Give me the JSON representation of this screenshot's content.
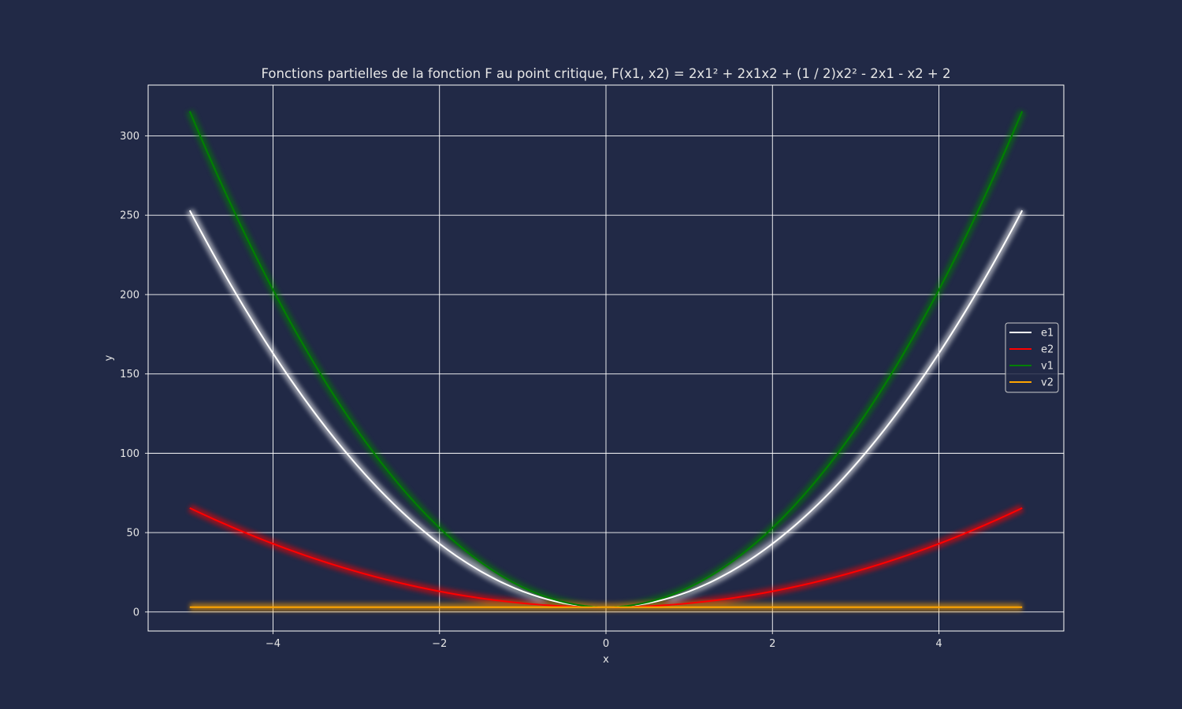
{
  "colors": {
    "background": "#212946",
    "text": "#e6e6e6",
    "grid": "#ffffff",
    "spine": "#ffffff"
  },
  "chart_data": {
    "type": "line",
    "title": "Fonctions partielles de la fonction F au point critique, F(x1, x2) = 2x1² + 2x1x2 + (1 / 2)x2² - 2x1 - x2 + 2",
    "xlabel": "x",
    "ylabel": "y",
    "xlim": [
      -5.5,
      5.5
    ],
    "ylim": [
      -12,
      332
    ],
    "xticks": [
      -4,
      -2,
      0,
      2,
      4
    ],
    "xtick_labels": [
      "−4",
      "−2",
      "0",
      "2",
      "4"
    ],
    "yticks": [
      0,
      50,
      100,
      150,
      200,
      250,
      300
    ],
    "ytick_labels": [
      "0",
      "50",
      "100",
      "150",
      "200",
      "250",
      "300"
    ],
    "grid": true,
    "legend_position": "center-right",
    "x_range": [
      -5,
      5
    ],
    "series": [
      {
        "name": "e1",
        "color": "#ffffff",
        "formula": "10x² + 3",
        "a": 10,
        "c": 3,
        "samples": {
          "x": [
            -5,
            -4,
            -2,
            0,
            2,
            4,
            5
          ],
          "y": [
            253,
            163,
            43,
            3,
            43,
            163,
            253
          ]
        }
      },
      {
        "name": "e2",
        "color": "#ff0000",
        "formula": "2.5x² + 3",
        "a": 2.5,
        "c": 3,
        "samples": {
          "x": [
            -5,
            -4,
            -2,
            0,
            2,
            4,
            5
          ],
          "y": [
            65.5,
            43,
            13,
            3,
            13,
            43,
            65.5
          ]
        }
      },
      {
        "name": "v1",
        "color": "#008000",
        "formula": "12.5x² + 3",
        "a": 12.5,
        "c": 3,
        "samples": {
          "x": [
            -5,
            -4,
            -2,
            0,
            2,
            4,
            5
          ],
          "y": [
            315.5,
            203,
            53,
            3,
            53,
            203,
            315.5
          ]
        }
      },
      {
        "name": "v2",
        "color": "#ffa500",
        "formula": "3",
        "a": 0,
        "c": 3,
        "samples": {
          "x": [
            -5,
            0,
            5
          ],
          "y": [
            3,
            3,
            3
          ]
        }
      }
    ]
  }
}
